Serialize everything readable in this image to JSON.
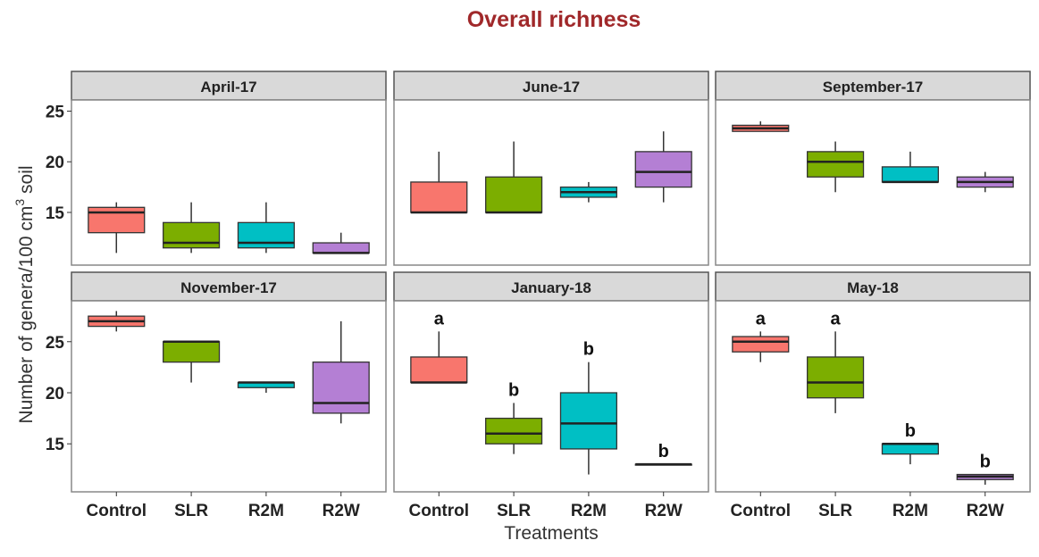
{
  "chart_data": {
    "type": "boxplot",
    "title": "Overall richness",
    "xlabel": "Treatments",
    "ylabel": "Number of genera/100 cm³ soil",
    "ylabel_parts": {
      "main": "Number of genera/100  cm",
      "sup": "3",
      "tail": " soil"
    },
    "categories": [
      "Control",
      "SLR",
      "R2M",
      "R2W"
    ],
    "colors": {
      "Control": "#F8766D",
      "SLR": "#7CAE00",
      "R2M": "#00BFC4",
      "R2W": "#B47FD4"
    },
    "title_color": "#A0282A",
    "y_ticks": [
      15,
      20,
      25
    ],
    "rows": [
      {
        "ylim": [
          9.8,
          26.1
        ]
      },
      {
        "ylim": [
          10.3,
          29.0
        ]
      }
    ],
    "grid": false,
    "panels": [
      {
        "label": "April-17",
        "row": 0,
        "boxes": [
          {
            "min": 11,
            "q1": 13,
            "median": 15,
            "q3": 15.5,
            "max": 16
          },
          {
            "min": 11,
            "q1": 11.5,
            "median": 12,
            "q3": 14,
            "max": 16
          },
          {
            "min": 11,
            "q1": 11.5,
            "median": 12,
            "q3": 14,
            "max": 16
          },
          {
            "min": 11,
            "q1": 11,
            "median": 11,
            "q3": 12,
            "max": 13
          }
        ],
        "letters": []
      },
      {
        "label": "June-17",
        "row": 0,
        "boxes": [
          {
            "min": 15,
            "q1": 15,
            "median": 15,
            "q3": 18,
            "max": 21
          },
          {
            "min": 15,
            "q1": 15,
            "median": 15,
            "q3": 18.5,
            "max": 22
          },
          {
            "min": 16,
            "q1": 16.5,
            "median": 17,
            "q3": 17.5,
            "max": 18
          },
          {
            "min": 16,
            "q1": 17.5,
            "median": 19,
            "q3": 21,
            "max": 23
          }
        ],
        "letters": []
      },
      {
        "label": "September-17",
        "row": 0,
        "boxes": [
          {
            "min": 23,
            "q1": 23,
            "median": 23.3,
            "q3": 23.6,
            "max": 24
          },
          {
            "min": 17,
            "q1": 18.5,
            "median": 20,
            "q3": 21,
            "max": 22
          },
          {
            "min": 18,
            "q1": 18,
            "median": 18,
            "q3": 19.5,
            "max": 21
          },
          {
            "min": 17,
            "q1": 17.5,
            "median": 18,
            "q3": 18.5,
            "max": 19
          }
        ],
        "letters": []
      },
      {
        "label": "November-17",
        "row": 1,
        "boxes": [
          {
            "min": 26,
            "q1": 26.5,
            "median": 27,
            "q3": 27.5,
            "max": 28
          },
          {
            "min": 21,
            "q1": 23,
            "median": 25,
            "q3": 25,
            "max": 25
          },
          {
            "min": 20,
            "q1": 20.5,
            "median": 21,
            "q3": 21,
            "max": 21
          },
          {
            "min": 17,
            "q1": 18,
            "median": 19,
            "q3": 23,
            "max": 27
          }
        ],
        "letters": []
      },
      {
        "label": "January-18",
        "row": 1,
        "boxes": [
          {
            "min": 21,
            "q1": 21,
            "median": 21,
            "q3": 23.5,
            "max": 26
          },
          {
            "min": 14,
            "q1": 15,
            "median": 16,
            "q3": 17.5,
            "max": 19
          },
          {
            "min": 12,
            "q1": 14.5,
            "median": 17,
            "q3": 20,
            "max": 23
          },
          {
            "min": 13,
            "q1": 13,
            "median": 13,
            "q3": 13,
            "max": 13
          }
        ],
        "letters": [
          "a",
          "b",
          "b",
          "b"
        ]
      },
      {
        "label": "May-18",
        "row": 1,
        "boxes": [
          {
            "min": 23,
            "q1": 24,
            "median": 25,
            "q3": 25.5,
            "max": 26
          },
          {
            "min": 18,
            "q1": 19.5,
            "median": 21,
            "q3": 23.5,
            "max": 26
          },
          {
            "min": 13,
            "q1": 14,
            "median": 15,
            "q3": 15,
            "max": 15
          },
          {
            "min": 11,
            "q1": 11.5,
            "median": 11.8,
            "q3": 12,
            "max": 12
          }
        ],
        "letters": [
          "a",
          "a",
          "b",
          "b"
        ]
      }
    ]
  }
}
